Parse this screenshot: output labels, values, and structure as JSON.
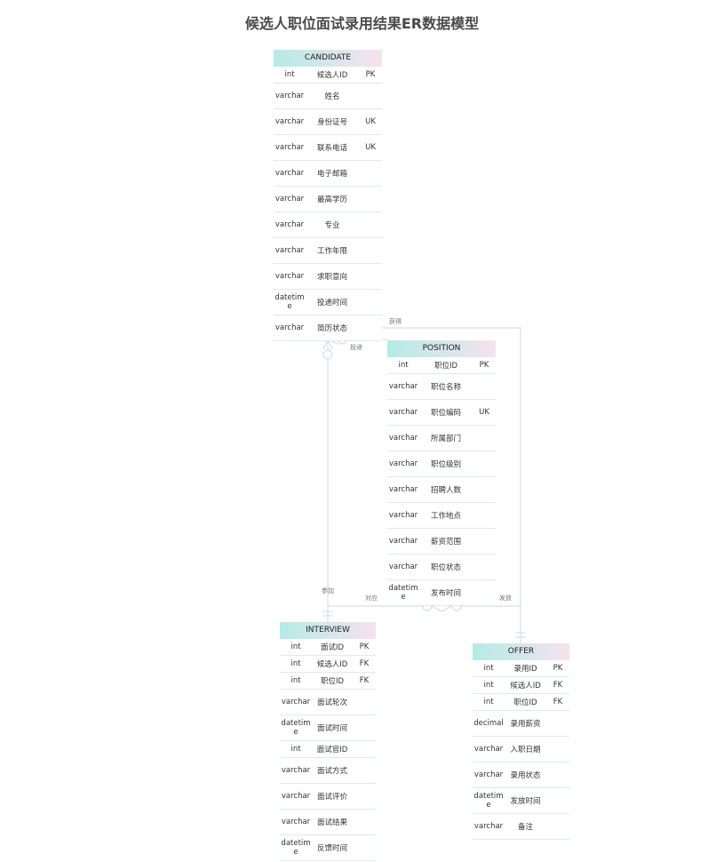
{
  "title": "候选人职位面试录用结果ER数据模型",
  "entities": [
    {
      "id": "candidate",
      "name": "CANDIDATE",
      "fields": [
        {
          "type": "int",
          "name": "候选人ID",
          "key": "PK"
        },
        {
          "type": "varchar",
          "name": "姓名",
          "key": ""
        },
        {
          "type": "varchar",
          "name": "身份证号",
          "key": "UK"
        },
        {
          "type": "varchar",
          "name": "联系电话",
          "key": "UK"
        },
        {
          "type": "varchar",
          "name": "电子邮箱",
          "key": ""
        },
        {
          "type": "varchar",
          "name": "最高学历",
          "key": ""
        },
        {
          "type": "varchar",
          "name": "专业",
          "key": ""
        },
        {
          "type": "varchar",
          "name": "工作年限",
          "key": ""
        },
        {
          "type": "varchar",
          "name": "求职意向",
          "key": ""
        },
        {
          "type": "datetime",
          "name": "投递时间",
          "key": ""
        },
        {
          "type": "varchar",
          "name": "简历状态",
          "key": ""
        }
      ]
    },
    {
      "id": "position",
      "name": "POSITION",
      "fields": [
        {
          "type": "int",
          "name": "职位ID",
          "key": "PK"
        },
        {
          "type": "varchar",
          "name": "职位名称",
          "key": ""
        },
        {
          "type": "varchar",
          "name": "职位编码",
          "key": "UK"
        },
        {
          "type": "varchar",
          "name": "所属部门",
          "key": ""
        },
        {
          "type": "varchar",
          "name": "职位级别",
          "key": ""
        },
        {
          "type": "varchar",
          "name": "招聘人数",
          "key": ""
        },
        {
          "type": "varchar",
          "name": "工作地点",
          "key": ""
        },
        {
          "type": "varchar",
          "name": "薪资范围",
          "key": ""
        },
        {
          "type": "varchar",
          "name": "职位状态",
          "key": ""
        },
        {
          "type": "datetime",
          "name": "发布时间",
          "key": ""
        }
      ]
    },
    {
      "id": "interview",
      "name": "INTERVIEW",
      "fields": [
        {
          "type": "int",
          "name": "面试ID",
          "key": "PK"
        },
        {
          "type": "int",
          "name": "候选人ID",
          "key": "FK"
        },
        {
          "type": "int",
          "name": "职位ID",
          "key": "FK"
        },
        {
          "type": "varchar",
          "name": "面试轮次",
          "key": ""
        },
        {
          "type": "datetime",
          "name": "面试时间",
          "key": ""
        },
        {
          "type": "int",
          "name": "面试官ID",
          "key": ""
        },
        {
          "type": "varchar",
          "name": "面试方式",
          "key": ""
        },
        {
          "type": "varchar",
          "name": "面试评价",
          "key": ""
        },
        {
          "type": "varchar",
          "name": "面试结果",
          "key": ""
        },
        {
          "type": "datetime",
          "name": "反馈时间",
          "key": ""
        }
      ]
    },
    {
      "id": "offer",
      "name": "OFFER",
      "fields": [
        {
          "type": "int",
          "name": "录用ID",
          "key": "PK"
        },
        {
          "type": "int",
          "name": "候选人ID",
          "key": "FK"
        },
        {
          "type": "int",
          "name": "职位ID",
          "key": "FK"
        },
        {
          "type": "decimal",
          "name": "录用薪资",
          "key": ""
        },
        {
          "type": "varchar",
          "name": "入职日期",
          "key": ""
        },
        {
          "type": "varchar",
          "name": "录用状态",
          "key": ""
        },
        {
          "type": "datetime",
          "name": "发放时间",
          "key": ""
        },
        {
          "type": "varchar",
          "name": "备注",
          "key": ""
        }
      ]
    }
  ],
  "relationships": [
    {
      "label": "获得",
      "from": "CANDIDATE",
      "to": "OFFER"
    },
    {
      "label": "投递",
      "from": "CANDIDATE",
      "to": "POSITION"
    },
    {
      "label": "参加",
      "from": "CANDIDATE",
      "to": "INTERVIEW"
    },
    {
      "label": "对应",
      "from": "POSITION",
      "to": "INTERVIEW"
    },
    {
      "label": "发放",
      "from": "POSITION",
      "to": "OFFER"
    }
  ],
  "colors": {
    "line": "#c3dbf7",
    "header_start": "#b4ebe6",
    "header_end": "#f6e2ef"
  }
}
